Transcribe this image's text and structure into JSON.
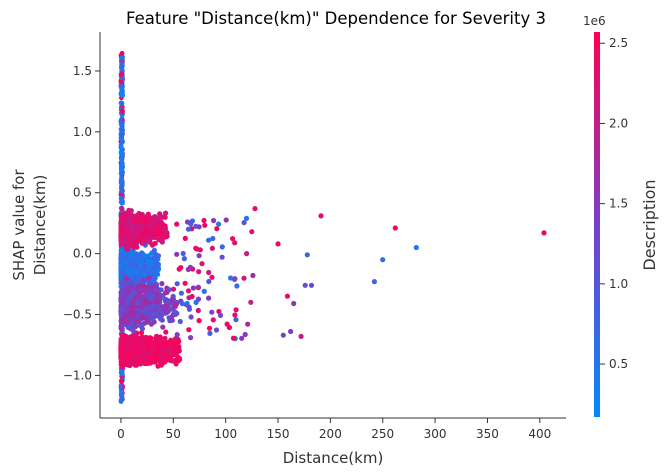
{
  "chart_data": {
    "type": "scatter",
    "title": "Feature \"Distance(km)\" Dependence for Severity 3",
    "xlabel": "Distance(km)",
    "ylabel_lines": [
      "SHAP value for",
      "Distance(km)"
    ],
    "xlim": [
      -20,
      425
    ],
    "ylim": [
      -1.35,
      1.82
    ],
    "x_ticks": [
      0,
      50,
      100,
      150,
      200,
      250,
      300,
      350,
      400
    ],
    "x_tick_labels": [
      "0",
      "50",
      "100",
      "150",
      "200",
      "250",
      "300",
      "350",
      "400"
    ],
    "y_ticks": [
      -1.0,
      -0.5,
      0.0,
      0.5,
      1.0,
      1.5
    ],
    "y_tick_labels": [
      "−1.0",
      "−0.5",
      "0.0",
      "0.5",
      "1.0",
      "1.5"
    ],
    "colorbar": {
      "label": "Description",
      "scale_label": "1e6",
      "range": [
        0.17,
        2.57
      ],
      "ticks": [
        0.5,
        1.0,
        1.5,
        2.0,
        2.5
      ],
      "tick_labels": [
        "0.5",
        "1.0",
        "1.5",
        "2.0",
        "2.5"
      ],
      "colors": [
        "#008bfb",
        "#ff0052"
      ]
    },
    "points": [
      {
        "x": 404,
        "y": 0.17,
        "c": 2.4
      },
      {
        "x": 282,
        "y": 0.05,
        "c": 0.4
      },
      {
        "x": 262,
        "y": 0.21,
        "c": 2.4
      },
      {
        "x": 250,
        "y": -0.05,
        "c": 0.6
      },
      {
        "x": 242,
        "y": -0.23,
        "c": 0.8
      },
      {
        "x": 191,
        "y": 0.31,
        "c": 2.3
      },
      {
        "x": 178,
        "y": -0.01,
        "c": 0.8
      },
      {
        "x": 176,
        "y": -0.26,
        "c": 1.1
      },
      {
        "x": 182,
        "y": -0.26,
        "c": 1.1
      },
      {
        "x": 172,
        "y": -0.68,
        "c": 2.0
      },
      {
        "x": 150,
        "y": 0.08,
        "c": 2.4
      },
      {
        "x": 159,
        "y": -0.35,
        "c": 2.4
      },
      {
        "x": 155,
        "y": -0.67,
        "c": 1.2
      },
      {
        "x": 162,
        "y": -0.64,
        "c": 1.4
      },
      {
        "x": 165,
        "y": -0.41,
        "c": 1.5
      },
      {
        "x": 128,
        "y": 0.37,
        "c": 2.3
      },
      {
        "x": 125,
        "y": 0.18,
        "c": 2.2
      },
      {
        "x": 124,
        "y": -0.4,
        "c": 2.0
      },
      {
        "x": 121,
        "y": -0.58,
        "c": 1.8
      },
      {
        "x": 120,
        "y": 0.0,
        "c": 2.0
      },
      {
        "x": 126,
        "y": -0.18,
        "c": 1.6
      }
    ]
  }
}
